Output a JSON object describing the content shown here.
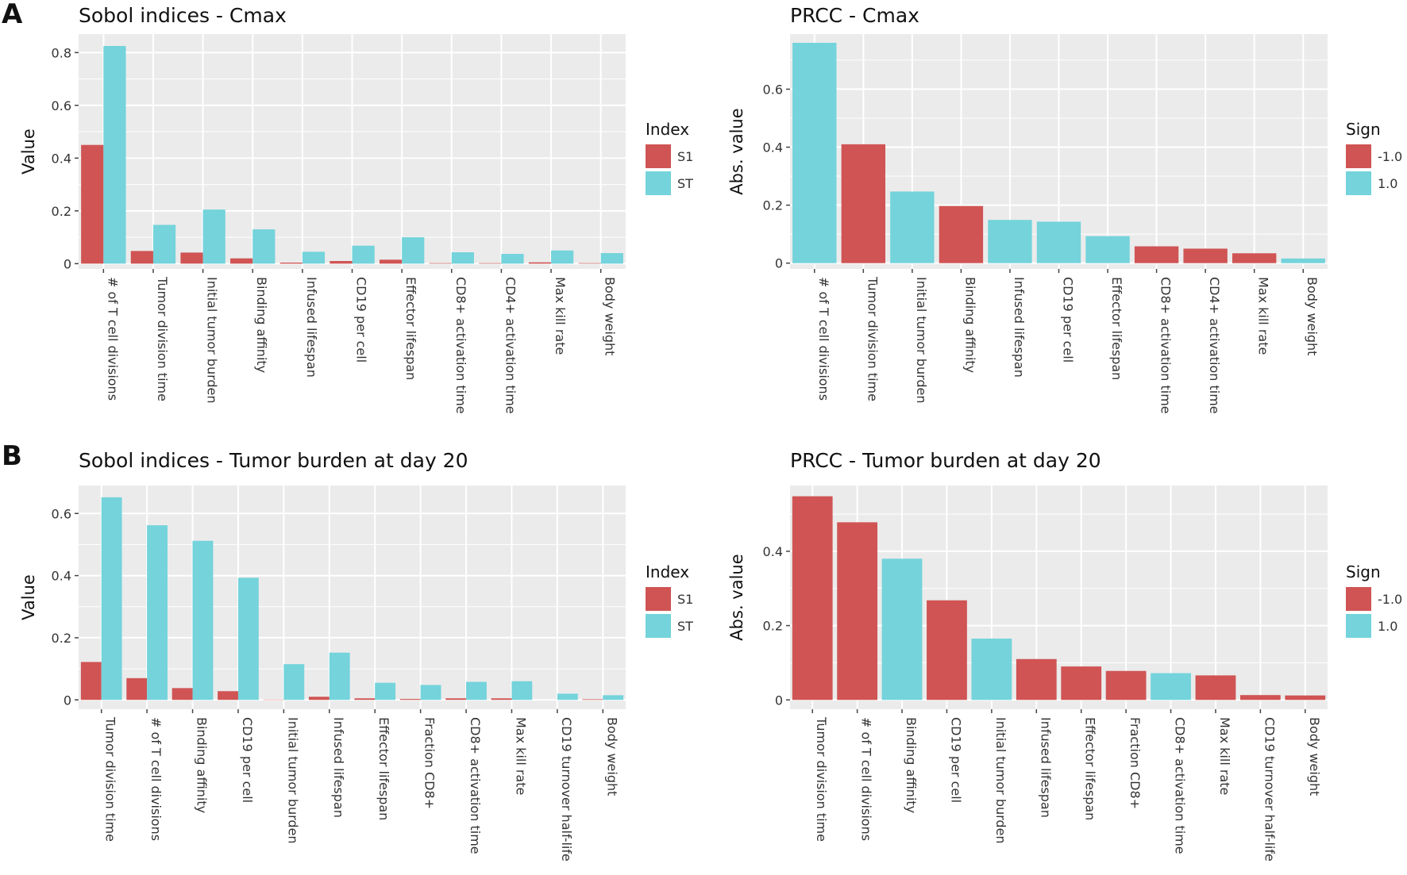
{
  "figure": {
    "panel_labels": [
      "A",
      "B"
    ],
    "colors": {
      "neg": "#d05454",
      "pos": "#74d3db",
      "panel_bg": "#ebebeb",
      "grid": "#ffffff"
    }
  },
  "chart_data": [
    {
      "id": "sobol_cmax",
      "type": "bar",
      "title": "Sobol indices - Cmax",
      "xlabel": "",
      "ylabel": "Value",
      "ylim": [
        -0.02,
        0.87
      ],
      "yticks": [
        0,
        0.2,
        0.4,
        0.6,
        0.8
      ],
      "ytick_labels": [
        "0",
        "0.2",
        "0.4",
        "0.6",
        "0.8"
      ],
      "categories": [
        "# of T cell divisions",
        "Tumor division time",
        "Initial tumor burden",
        "Binding affinity",
        "Infused lifespan",
        "CD19 per cell",
        "Effector lifespan",
        "CD8+ activation time",
        "CD4+ activation time",
        "Max kill rate",
        "Body weight"
      ],
      "series": [
        {
          "name": "S1",
          "color": "#d05454",
          "values": [
            0.45,
            0.048,
            0.042,
            0.02,
            0.004,
            0.01,
            0.015,
            0.002,
            0.002,
            0.005,
            0.002
          ]
        },
        {
          "name": "ST",
          "color": "#74d3db",
          "values": [
            0.825,
            0.147,
            0.205,
            0.13,
            0.045,
            0.068,
            0.1,
            0.043,
            0.037,
            0.05,
            0.04
          ]
        }
      ],
      "legend": {
        "title": "Index",
        "entries": [
          "S1",
          "ST"
        ],
        "placement": "right"
      }
    },
    {
      "id": "prcc_cmax",
      "type": "bar",
      "title": "PRCC - Cmax",
      "xlabel": "",
      "ylabel": "Abs. value",
      "ylim": [
        -0.02,
        0.79
      ],
      "yticks": [
        0,
        0.2,
        0.4,
        0.6
      ],
      "ytick_labels": [
        "0",
        "0.2",
        "0.4",
        "0.6"
      ],
      "categories": [
        "# of T cell divisions",
        "Tumor division time",
        "Initial tumor burden",
        "Binding affinity",
        "Infused lifespan",
        "CD19 per cell",
        "Effector lifespan",
        "CD8+ activation time",
        "CD4+ activation time",
        "Max kill rate",
        "Body weight"
      ],
      "values": [
        0.76,
        0.41,
        0.247,
        0.197,
        0.149,
        0.143,
        0.093,
        0.058,
        0.05,
        0.034,
        0.016
      ],
      "signs": [
        1.0,
        -1.0,
        1.0,
        -1.0,
        1.0,
        1.0,
        1.0,
        -1.0,
        -1.0,
        -1.0,
        1.0
      ],
      "legend": {
        "title": "Sign",
        "entries": [
          "-1.0",
          "1.0"
        ],
        "placement": "right"
      }
    },
    {
      "id": "sobol_tumor",
      "type": "bar",
      "title": "Sobol indices - Tumor burden at day 20",
      "xlabel": "",
      "ylabel": "Value",
      "ylim": [
        -0.03,
        0.69
      ],
      "yticks": [
        0,
        0.2,
        0.4,
        0.6
      ],
      "ytick_labels": [
        "0",
        "0.2",
        "0.4",
        "0.6"
      ],
      "categories": [
        "Tumor division time",
        "# of T cell divisions",
        "Binding affinity",
        "CD19 per cell",
        "Initial tumor burden",
        "Infused lifespan",
        "Effector lifespan",
        "Fraction CD8+",
        "CD8+ activation time",
        "Max kill rate",
        "CD19 turnover half-life",
        "Body weight"
      ],
      "series": [
        {
          "name": "S1",
          "color": "#d05454",
          "values": [
            0.122,
            0.07,
            0.038,
            0.028,
            0.001,
            0.01,
            0.005,
            0.003,
            0.005,
            0.005,
            0.0,
            0.002
          ]
        },
        {
          "name": "ST",
          "color": "#74d3db",
          "values": [
            0.652,
            0.562,
            0.512,
            0.393,
            0.115,
            0.152,
            0.055,
            0.048,
            0.058,
            0.06,
            0.02,
            0.015
          ]
        }
      ],
      "legend": {
        "title": "Index",
        "entries": [
          "S1",
          "ST"
        ],
        "placement": "right"
      }
    },
    {
      "id": "prcc_tumor",
      "type": "bar",
      "title": "PRCC - Tumor burden at day 20",
      "xlabel": "",
      "ylabel": "Abs. value",
      "ylim": [
        -0.025,
        0.577
      ],
      "yticks": [
        0,
        0.2,
        0.4
      ],
      "ytick_labels": [
        "0",
        "0.2",
        "0.4"
      ],
      "categories": [
        "Tumor division time",
        "# of T cell divisions",
        "Binding affinity",
        "CD19 per cell",
        "Initial tumor burden",
        "Infused lifespan",
        "Effector lifespan",
        "Fraction CD8+",
        "CD8+ activation time",
        "Max kill rate",
        "CD19 turnover half-life",
        "Body weight"
      ],
      "values": [
        0.548,
        0.478,
        0.38,
        0.268,
        0.165,
        0.11,
        0.09,
        0.078,
        0.072,
        0.066,
        0.013,
        0.012
      ],
      "signs": [
        -1.0,
        -1.0,
        1.0,
        -1.0,
        1.0,
        -1.0,
        -1.0,
        -1.0,
        1.0,
        -1.0,
        -1.0,
        -1.0
      ],
      "legend": {
        "title": "Sign",
        "entries": [
          "-1.0",
          "1.0"
        ],
        "placement": "right"
      }
    }
  ]
}
